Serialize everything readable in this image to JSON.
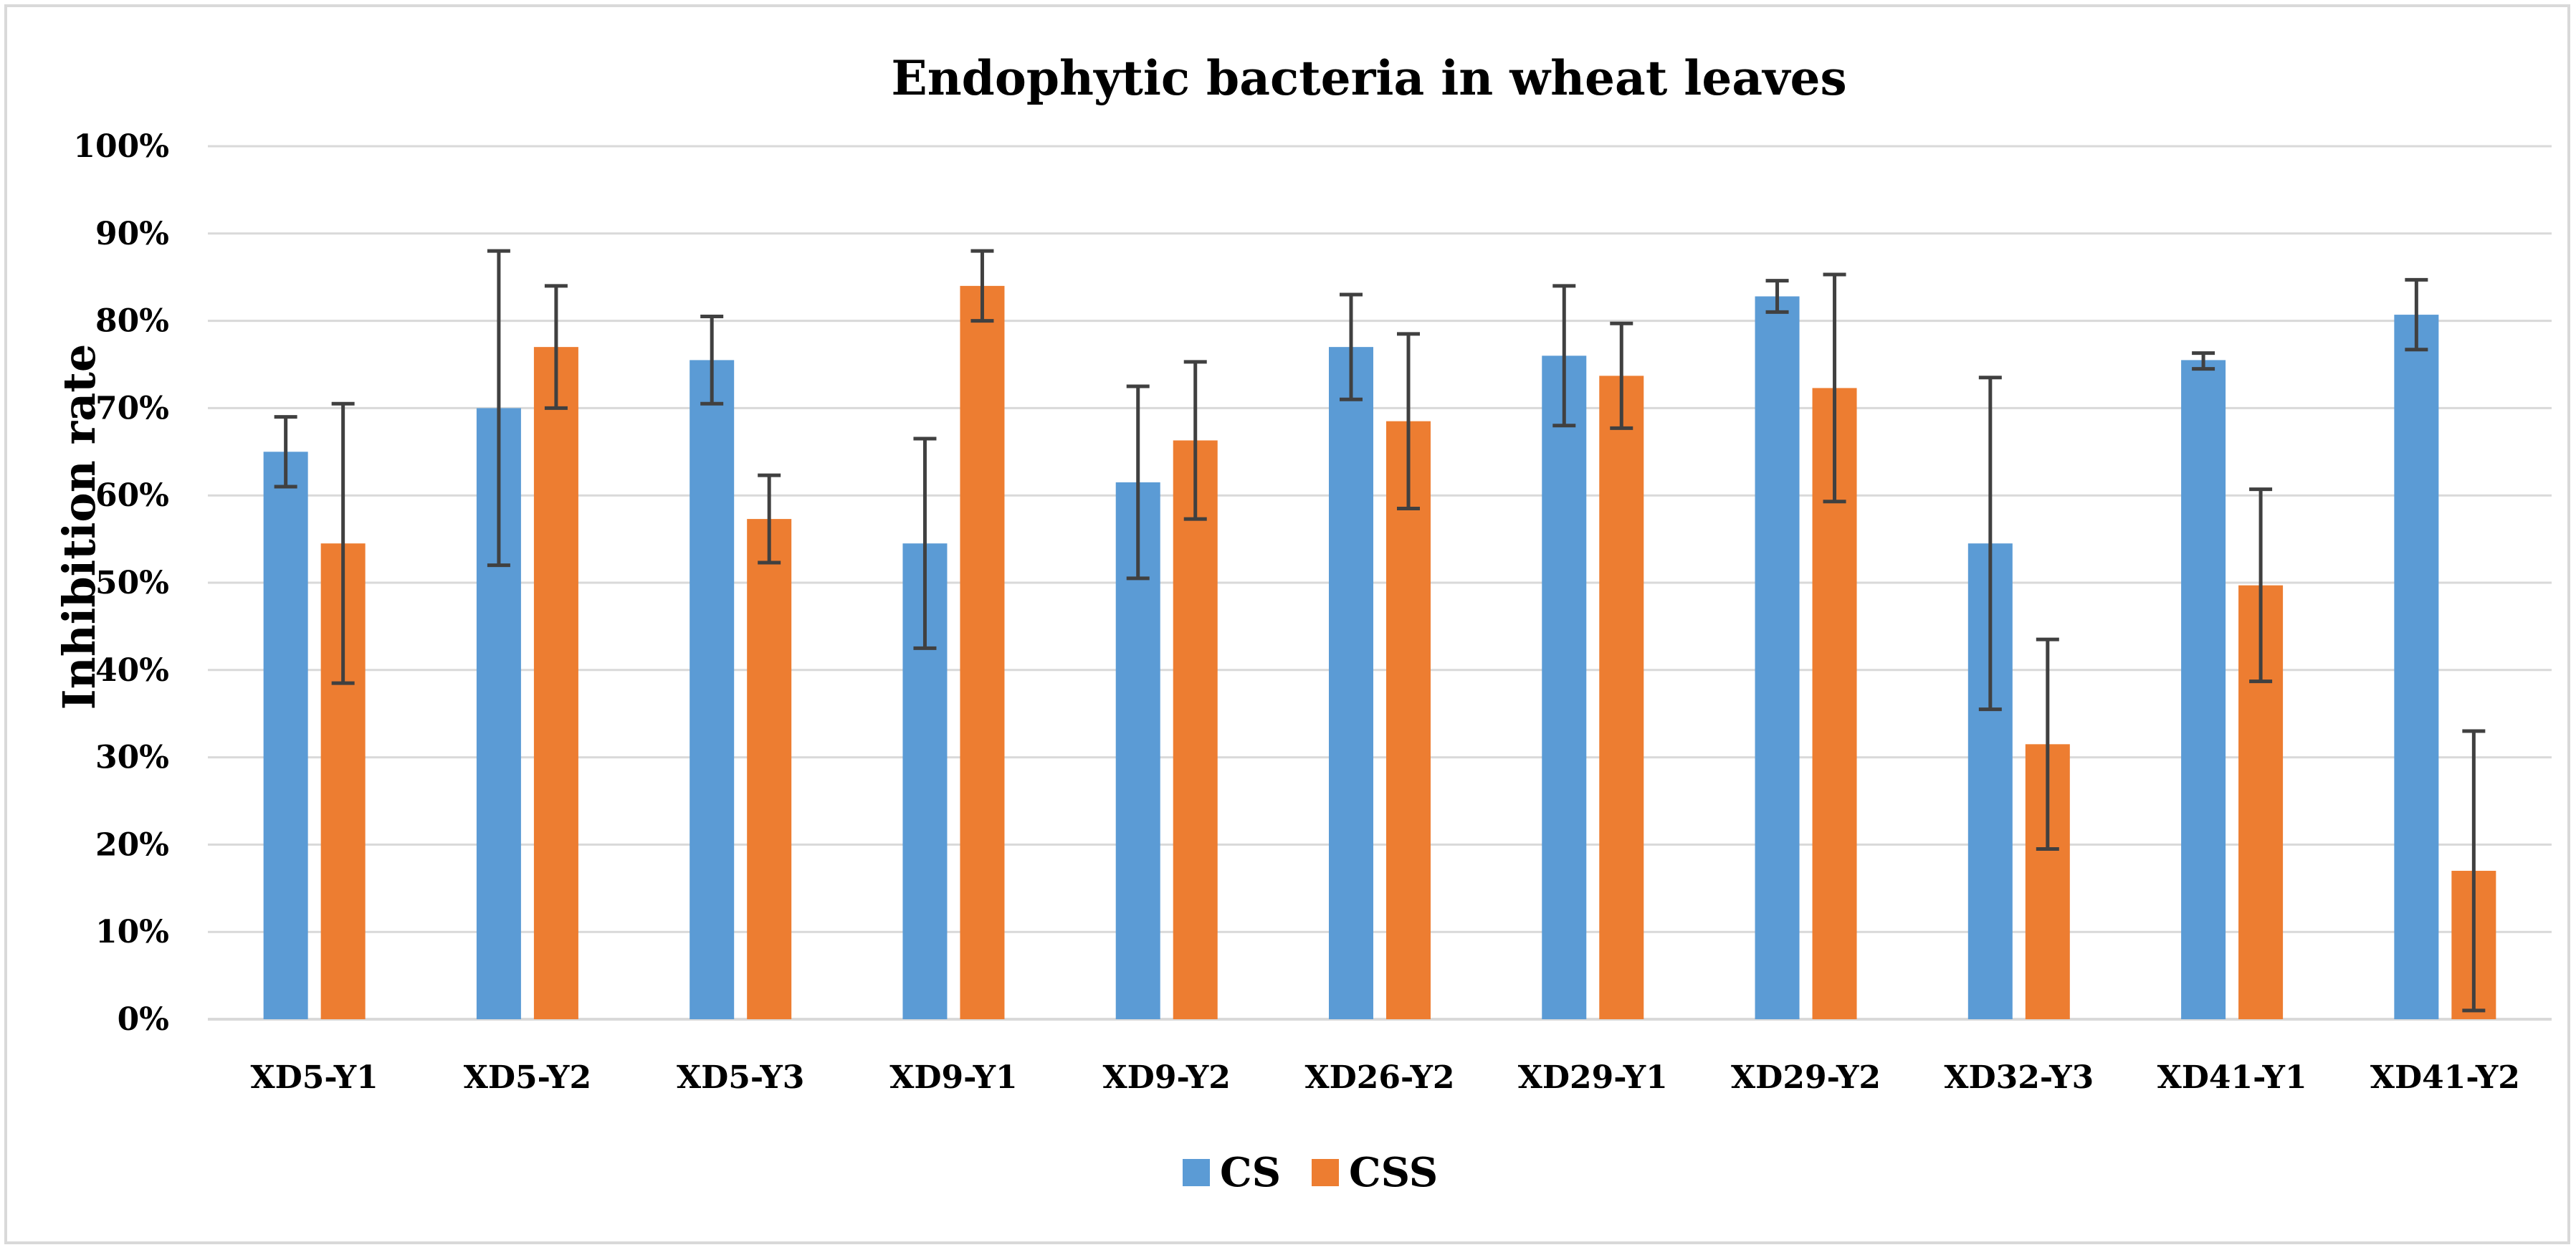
{
  "chart_data": {
    "type": "bar",
    "title": "Endophytic bacteria in wheat leaves",
    "xlabel": "",
    "ylabel": "Inhibition rate",
    "ylim": [
      0,
      100
    ],
    "yticks": [
      "0%",
      "10%",
      "20%",
      "30%",
      "40%",
      "50%",
      "60%",
      "70%",
      "80%",
      "90%",
      "100%"
    ],
    "grid": true,
    "legend_position": "bottom",
    "categories": [
      "XD5-Y1",
      "XD5-Y2",
      "XD5-Y3",
      "XD9-Y1",
      "XD9-Y2",
      "XD26-Y2",
      "XD29-Y1",
      "XD29-Y2",
      "XD32-Y3",
      "XD41-Y1",
      "XD41-Y2"
    ],
    "series": [
      {
        "name": "CS",
        "color": "#5b9bd5",
        "values": [
          65,
          70,
          75.5,
          54.5,
          61.5,
          77,
          76,
          82.8,
          54.5,
          75.5,
          80.7
        ],
        "error_low": [
          61,
          52,
          70.5,
          42.5,
          50.5,
          71,
          68,
          81,
          35.5,
          74.5,
          76.7
        ],
        "error_high": [
          69,
          88,
          80.5,
          66.5,
          72.5,
          83,
          84,
          84.6,
          73.5,
          76.3,
          84.7
        ]
      },
      {
        "name": "CSS",
        "color": "#ed7d31",
        "values": [
          54.5,
          77,
          57.3,
          84,
          66.3,
          68.5,
          73.7,
          72.3,
          31.5,
          49.7,
          17
        ],
        "error_low": [
          38.5,
          70,
          52.3,
          80,
          57.3,
          58.5,
          67.7,
          59.3,
          19.5,
          38.7,
          1
        ],
        "error_high": [
          70.5,
          84,
          62.3,
          88,
          75.3,
          78.5,
          79.7,
          85.3,
          43.5,
          60.7,
          33
        ]
      }
    ],
    "error_bar_color": "#404040",
    "gridline_color": "#d9d9d9"
  }
}
